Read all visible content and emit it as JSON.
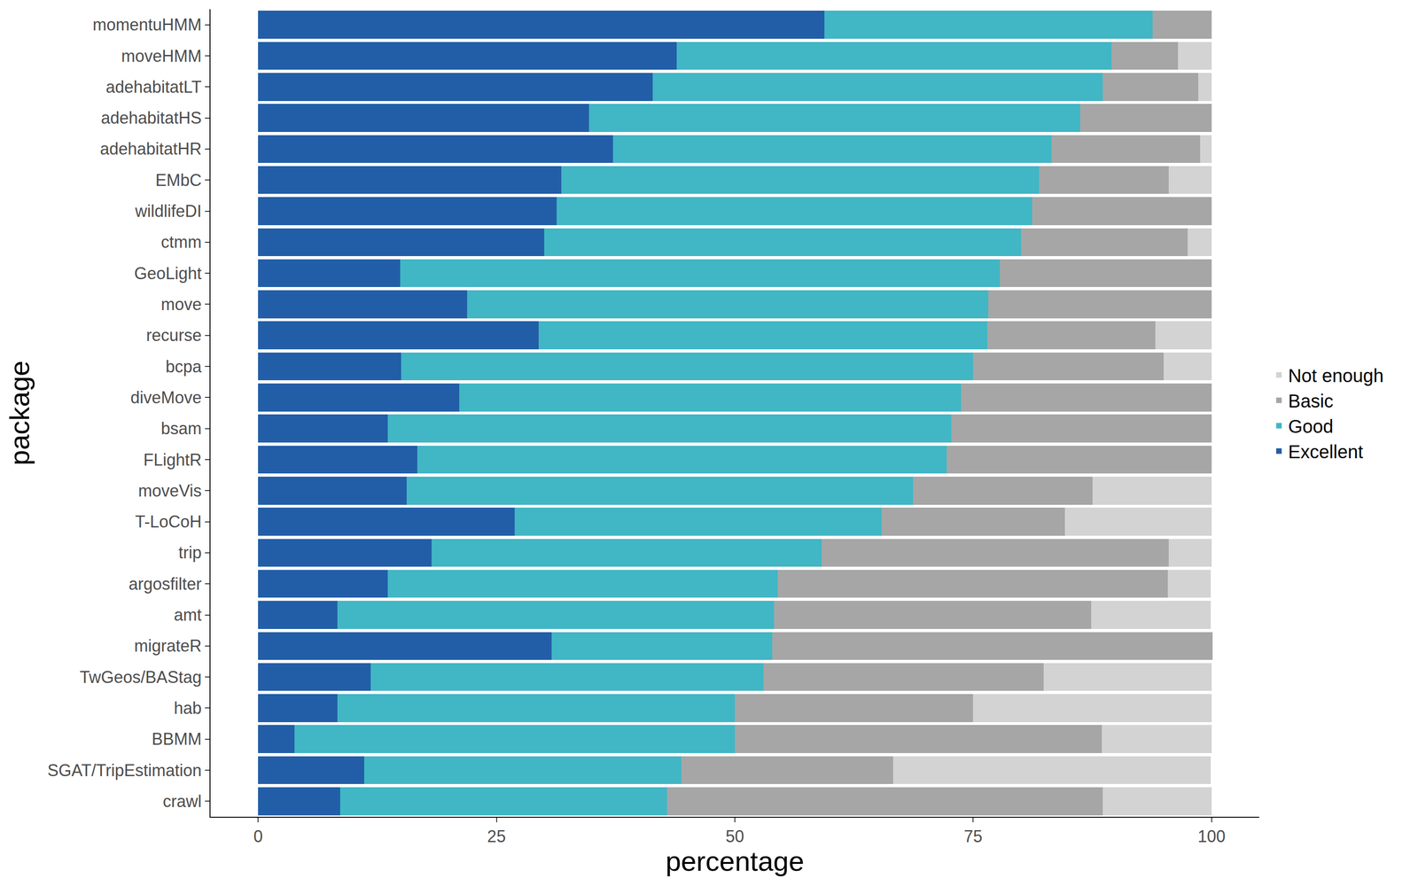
{
  "chart_data": {
    "type": "bar",
    "orientation": "horizontal",
    "stacked": true,
    "grid": false,
    "legend": "right",
    "x_label": "percentage",
    "y_label": "package",
    "xlim": [
      -5,
      105
    ],
    "xticks": [
      0,
      25,
      50,
      75,
      100
    ],
    "categories": [
      "momentuHMM",
      "moveHMM",
      "adehabitatLT",
      "adehabitatHS",
      "adehabitatHR",
      "EMbC",
      "wildlifeDI",
      "ctmm",
      "GeoLight",
      "move",
      "recurse",
      "bcpa",
      "diveMove",
      "bsam",
      "FLightR",
      "moveVis",
      "T-LoCoH",
      "trip",
      "argosfilter",
      "amt",
      "migrateR",
      "TwGeos/BAStag",
      "hab",
      "BBMM",
      "SGAT/TripEstimation",
      "crawl"
    ],
    "series": [
      {
        "name": "Excellent",
        "color": "#225ea8",
        "values": [
          59.4,
          43.9,
          41.4,
          34.7,
          37.2,
          31.8,
          31.3,
          30.0,
          14.9,
          21.9,
          29.4,
          15.0,
          21.1,
          13.6,
          16.7,
          15.6,
          26.9,
          18.2,
          13.6,
          8.3,
          30.8,
          11.8,
          8.3,
          3.8,
          11.1,
          8.6
        ]
      },
      {
        "name": "Good",
        "color": "#41b6c4",
        "values": [
          34.4,
          45.6,
          47.2,
          51.5,
          46.0,
          50.1,
          49.9,
          50.0,
          62.9,
          54.7,
          47.1,
          60.0,
          52.6,
          59.1,
          55.5,
          53.1,
          38.5,
          40.9,
          40.9,
          45.8,
          23.1,
          41.2,
          41.7,
          46.2,
          33.3,
          34.3
        ]
      },
      {
        "name": "Basic",
        "color": "#a6a6a6",
        "values": [
          6.2,
          7.0,
          10.0,
          13.8,
          15.6,
          13.6,
          18.8,
          17.5,
          22.2,
          23.4,
          17.6,
          20.0,
          26.3,
          27.3,
          27.8,
          18.8,
          19.2,
          36.4,
          40.9,
          33.3,
          46.2,
          29.4,
          25.0,
          38.5,
          22.2,
          45.7
        ]
      },
      {
        "name": "Not enough",
        "color": "#d3d3d3",
        "values": [
          0,
          3.5,
          1.4,
          0,
          1.2,
          4.5,
          0,
          2.5,
          0,
          0,
          5.9,
          5.0,
          0,
          0,
          0,
          12.5,
          15.4,
          4.5,
          4.5,
          12.5,
          0,
          17.6,
          25.0,
          11.5,
          33.3,
          11.4
        ]
      }
    ]
  }
}
